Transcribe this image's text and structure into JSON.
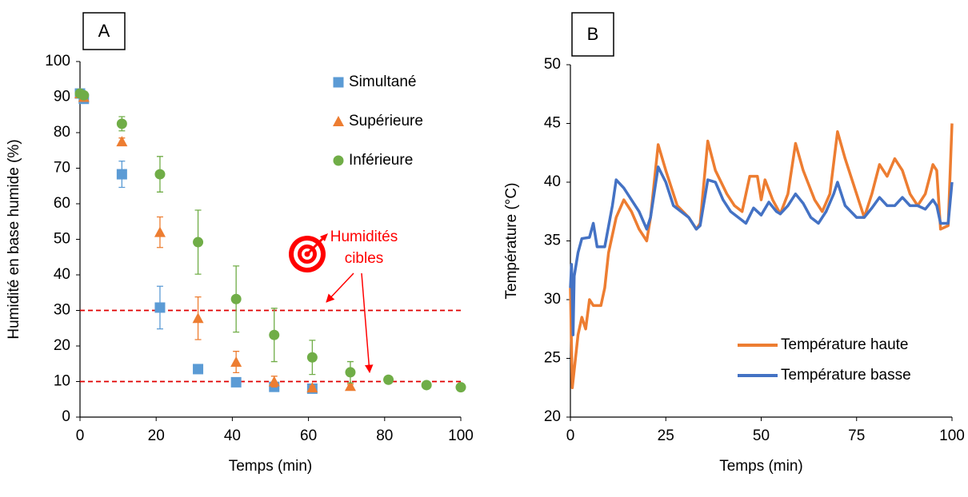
{
  "chart_data": [
    {
      "type": "scatter",
      "panel_label": "A",
      "xlabel": "Temps (min)",
      "ylabel": "Humidité en base humide (%)",
      "xlim": [
        0,
        100
      ],
      "xticks": [
        0,
        20,
        40,
        60,
        80,
        100
      ],
      "ylim": [
        0,
        100
      ],
      "yticks": [
        0,
        10,
        20,
        30,
        40,
        50,
        60,
        70,
        80,
        90,
        100
      ],
      "legend": "upper right",
      "hlines": [
        30,
        10
      ],
      "hline_color": "#e00000",
      "annotation": [
        "Humidités",
        "cibles"
      ],
      "annotation_color": "#ff0000",
      "series": [
        {
          "name": "Simultané",
          "color": "#5b9bd5",
          "marker": "square",
          "x": [
            0,
            1,
            11,
            21,
            31,
            41,
            51,
            61
          ],
          "values": [
            91,
            89.5,
            68.3,
            30.8,
            13.5,
            9.8,
            8.5,
            8
          ],
          "errors": [
            0.5,
            0.5,
            3.7,
            6,
            1,
            0.5,
            0.5,
            0.5
          ]
        },
        {
          "name": "Supérieure",
          "color": "#ed7d31",
          "marker": "triangle",
          "x": [
            0,
            1,
            11,
            21,
            31,
            41,
            51,
            61,
            71
          ],
          "values": [
            91,
            90,
            77.5,
            52,
            27.8,
            15.5,
            10,
            8.3,
            8.7
          ],
          "errors": [
            0.5,
            0.5,
            1,
            4.3,
            6,
            3,
            1.5,
            0.5,
            0.5
          ]
        },
        {
          "name": "Inférieure",
          "color": "#70ad47",
          "marker": "circle",
          "x": [
            0,
            1,
            11,
            21,
            31,
            41,
            51,
            61,
            71,
            81,
            91,
            100
          ],
          "values": [
            91,
            90.5,
            82.5,
            68.3,
            49.2,
            33.2,
            23.1,
            16.8,
            12.6,
            10.5,
            9,
            8.4
          ],
          "errors": [
            0.5,
            0.5,
            2,
            5,
            9,
            9.3,
            7.5,
            4.8,
            3,
            0.5,
            0.5,
            0.5
          ]
        }
      ]
    },
    {
      "type": "line",
      "panel_label": "B",
      "xlabel": "Temps (min)",
      "ylabel": "Température (°C)",
      "xlim": [
        0,
        100
      ],
      "xticks": [
        0,
        25,
        50,
        75,
        100
      ],
      "ylim": [
        20,
        50
      ],
      "yticks": [
        20,
        25,
        30,
        35,
        40,
        45,
        50
      ],
      "legend": "lower right",
      "series": [
        {
          "name": "Température haute",
          "color": "#ed7d31",
          "x": [
            0,
            0.5,
            1,
            2,
            3,
            4,
            5,
            6,
            7,
            8,
            9,
            10,
            12,
            14,
            16,
            18,
            20,
            21,
            23,
            25,
            28,
            31,
            33,
            34,
            36,
            38,
            41,
            43,
            45,
            47,
            49,
            50,
            51,
            53,
            55,
            57,
            59,
            61,
            64,
            66,
            68,
            70,
            72,
            75,
            77,
            79,
            81,
            83,
            85,
            87,
            89,
            91,
            93,
            95,
            96,
            97,
            99,
            100
          ],
          "values": [
            31,
            22.5,
            24,
            27,
            28.5,
            27.5,
            30,
            29.5,
            29.5,
            29.5,
            31,
            34,
            37,
            38.5,
            37.5,
            36,
            35,
            37,
            43.2,
            41,
            38,
            37,
            36,
            36.5,
            43.5,
            41,
            39,
            38,
            37.5,
            40.5,
            40.5,
            38.5,
            40.2,
            38.5,
            37.3,
            39,
            43.3,
            41,
            38.5,
            37.5,
            39,
            44.3,
            42,
            39,
            37,
            39,
            41.5,
            40.5,
            42,
            41,
            39,
            38,
            39,
            41.5,
            41,
            36,
            36.3,
            45
          ]
        },
        {
          "name": "Température basse",
          "color": "#4472c4",
          "x": [
            0,
            0.3,
            0.7,
            1,
            2,
            3,
            5,
            6,
            7,
            9,
            11,
            12,
            14,
            16,
            18,
            20,
            21,
            23,
            25,
            27,
            29,
            31,
            33,
            34,
            36,
            38,
            40,
            42,
            44,
            46,
            48,
            50,
            52,
            54,
            55,
            57,
            59,
            61,
            63,
            65,
            67,
            69,
            70,
            72,
            75,
            77,
            79,
            81,
            83,
            85,
            87,
            89,
            91,
            93,
            95,
            96,
            97,
            99,
            100
          ],
          "values": [
            31,
            33,
            27,
            32,
            34,
            35.2,
            35.3,
            36.5,
            34.5,
            34.5,
            38,
            40.2,
            39.5,
            38.5,
            37.5,
            36,
            37,
            41.3,
            40,
            38,
            37.5,
            37,
            36,
            36.3,
            40.2,
            40,
            38.5,
            37.5,
            37,
            36.5,
            37.8,
            37.2,
            38.3,
            37.5,
            37.3,
            38,
            39,
            38.2,
            37,
            36.5,
            37.5,
            39,
            40,
            38,
            37,
            37,
            37.8,
            38.7,
            38,
            38,
            38.7,
            38,
            38,
            37.7,
            38.5,
            38,
            36.5,
            36.5,
            40
          ]
        }
      ]
    }
  ]
}
